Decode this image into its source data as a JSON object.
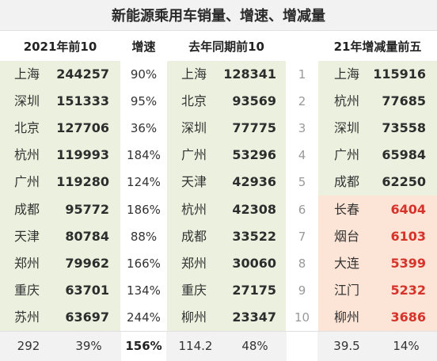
{
  "title": "新能源乘用车销量、增速、增减量",
  "headers": {
    "top10_2021": "2021年前10",
    "growth": "增速",
    "last_year_top10": "去年同期前10",
    "increase_top5": "21年增减量前五"
  },
  "top10_2021": [
    {
      "city": "上海",
      "value": "244257",
      "growth": "90%"
    },
    {
      "city": "深圳",
      "value": "151333",
      "growth": "95%"
    },
    {
      "city": "北京",
      "value": "127706",
      "growth": "36%"
    },
    {
      "city": "杭州",
      "value": "119993",
      "growth": "184%"
    },
    {
      "city": "广州",
      "value": "119280",
      "growth": "124%"
    },
    {
      "city": "成都",
      "value": "95772",
      "growth": "186%"
    },
    {
      "city": "天津",
      "value": "80784",
      "growth": "88%"
    },
    {
      "city": "郑州",
      "value": "79962",
      "growth": "166%"
    },
    {
      "city": "重庆",
      "value": "63701",
      "growth": "134%"
    },
    {
      "city": "苏州",
      "value": "63697",
      "growth": "244%"
    }
  ],
  "last_year_top10": [
    {
      "city": "上海",
      "value": "128341"
    },
    {
      "city": "北京",
      "value": "93569"
    },
    {
      "city": "深圳",
      "value": "77775"
    },
    {
      "city": "广州",
      "value": "53296"
    },
    {
      "city": "天津",
      "value": "42936"
    },
    {
      "city": "杭州",
      "value": "42308"
    },
    {
      "city": "成都",
      "value": "33522"
    },
    {
      "city": "郑州",
      "value": "30060"
    },
    {
      "city": "重庆",
      "value": "27175"
    },
    {
      "city": "柳州",
      "value": "23347"
    }
  ],
  "ranks": [
    "1",
    "2",
    "3",
    "4",
    "5",
    "6",
    "7",
    "8",
    "9",
    "10"
  ],
  "increase": [
    {
      "city": "上海",
      "value": "115916"
    },
    {
      "city": "杭州",
      "value": "77685"
    },
    {
      "city": "深圳",
      "value": "73558"
    },
    {
      "city": "广州",
      "value": "65984"
    },
    {
      "city": "成都",
      "value": "62250"
    },
    {
      "city": "长春",
      "value": "6404"
    },
    {
      "city": "烟台",
      "value": "6103"
    },
    {
      "city": "大连",
      "value": "5399"
    },
    {
      "city": "江门",
      "value": "5232"
    },
    {
      "city": "柳州",
      "value": "3686"
    }
  ],
  "footer": {
    "total_2021": "292",
    "share_2021": "39%",
    "growth_total": "156%",
    "total_last": "114.2",
    "share_last": "48%",
    "inc_total": "39.5",
    "inc_share": "14%"
  },
  "colors": {
    "green": "#ebf1de",
    "pink": "#fce4d6",
    "red_text": "#d6332a"
  }
}
